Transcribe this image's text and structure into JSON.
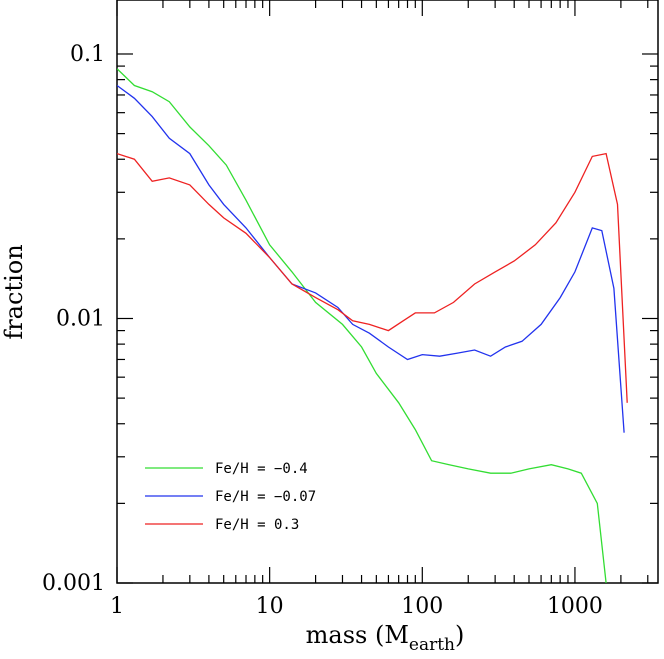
{
  "chart_data": {
    "type": "line",
    "title": "",
    "xlabel": "mass (M",
    "xlabel_sub": "earth",
    "xlabel_close": ")",
    "ylabel": "fraction",
    "xscale": "log",
    "yscale": "log",
    "xlim": [
      1,
      3500
    ],
    "ylim": [
      0.001,
      0.16
    ],
    "grid": false,
    "legend_location": "lower-left",
    "x_tick_labels": [
      {
        "value": 1,
        "label": "1"
      },
      {
        "value": 10,
        "label": "10"
      },
      {
        "value": 100,
        "label": "100"
      },
      {
        "value": 1000,
        "label": "1000"
      }
    ],
    "y_tick_labels": [
      {
        "value": 0.1,
        "label": "0.1"
      },
      {
        "value": 0.01,
        "label": "0.01"
      },
      {
        "value": 0.001,
        "label": "0.001"
      }
    ],
    "series": [
      {
        "name": "Fe/H = −0.4",
        "color": "#33dd33",
        "points": [
          [
            1.0,
            0.088
          ],
          [
            1.3,
            0.076
          ],
          [
            1.7,
            0.072
          ],
          [
            2.2,
            0.066
          ],
          [
            3.0,
            0.053
          ],
          [
            4.0,
            0.045
          ],
          [
            5.2,
            0.038
          ],
          [
            7.0,
            0.028
          ],
          [
            10,
            0.019
          ],
          [
            14,
            0.015
          ],
          [
            20,
            0.0115
          ],
          [
            30,
            0.0095
          ],
          [
            40,
            0.0078
          ],
          [
            50,
            0.0062
          ],
          [
            70,
            0.0048
          ],
          [
            90,
            0.0038
          ],
          [
            115,
            0.0029
          ],
          [
            150,
            0.0028
          ],
          [
            200,
            0.0027
          ],
          [
            280,
            0.0026
          ],
          [
            380,
            0.0026
          ],
          [
            500,
            0.0027
          ],
          [
            700,
            0.0028
          ],
          [
            900,
            0.0027
          ],
          [
            1100,
            0.0026
          ],
          [
            1400,
            0.002
          ],
          [
            1600,
            0.001
          ]
        ]
      },
      {
        "name": "Fe/H = −0.07",
        "color": "#2233ee",
        "points": [
          [
            1.0,
            0.076
          ],
          [
            1.3,
            0.068
          ],
          [
            1.7,
            0.058
          ],
          [
            2.2,
            0.048
          ],
          [
            3.0,
            0.042
          ],
          [
            4.0,
            0.032
          ],
          [
            5.0,
            0.027
          ],
          [
            7.0,
            0.022
          ],
          [
            10,
            0.017
          ],
          [
            14,
            0.0135
          ],
          [
            20,
            0.0125
          ],
          [
            28,
            0.011
          ],
          [
            35,
            0.0095
          ],
          [
            45,
            0.0088
          ],
          [
            60,
            0.0078
          ],
          [
            80,
            0.007
          ],
          [
            100,
            0.0073
          ],
          [
            130,
            0.0072
          ],
          [
            170,
            0.0074
          ],
          [
            220,
            0.0076
          ],
          [
            280,
            0.0072
          ],
          [
            350,
            0.0078
          ],
          [
            450,
            0.0082
          ],
          [
            600,
            0.0095
          ],
          [
            800,
            0.012
          ],
          [
            1000,
            0.015
          ],
          [
            1300,
            0.022
          ],
          [
            1500,
            0.0215
          ],
          [
            1800,
            0.013
          ],
          [
            2100,
            0.0037
          ]
        ]
      },
      {
        "name": "Fe/H = 0.3",
        "color": "#ee2222",
        "points": [
          [
            1.0,
            0.042
          ],
          [
            1.3,
            0.04
          ],
          [
            1.7,
            0.033
          ],
          [
            2.2,
            0.034
          ],
          [
            3.0,
            0.032
          ],
          [
            4.0,
            0.027
          ],
          [
            5.0,
            0.024
          ],
          [
            7.0,
            0.021
          ],
          [
            10,
            0.017
          ],
          [
            14,
            0.0135
          ],
          [
            20,
            0.012
          ],
          [
            28,
            0.0108
          ],
          [
            35,
            0.0098
          ],
          [
            45,
            0.0095
          ],
          [
            60,
            0.009
          ],
          [
            75,
            0.0098
          ],
          [
            90,
            0.0105
          ],
          [
            120,
            0.0105
          ],
          [
            160,
            0.0115
          ],
          [
            220,
            0.0135
          ],
          [
            300,
            0.015
          ],
          [
            400,
            0.0165
          ],
          [
            550,
            0.019
          ],
          [
            750,
            0.023
          ],
          [
            1000,
            0.03
          ],
          [
            1300,
            0.041
          ],
          [
            1600,
            0.042
          ],
          [
            1900,
            0.027
          ],
          [
            2200,
            0.0048
          ]
        ]
      }
    ]
  }
}
